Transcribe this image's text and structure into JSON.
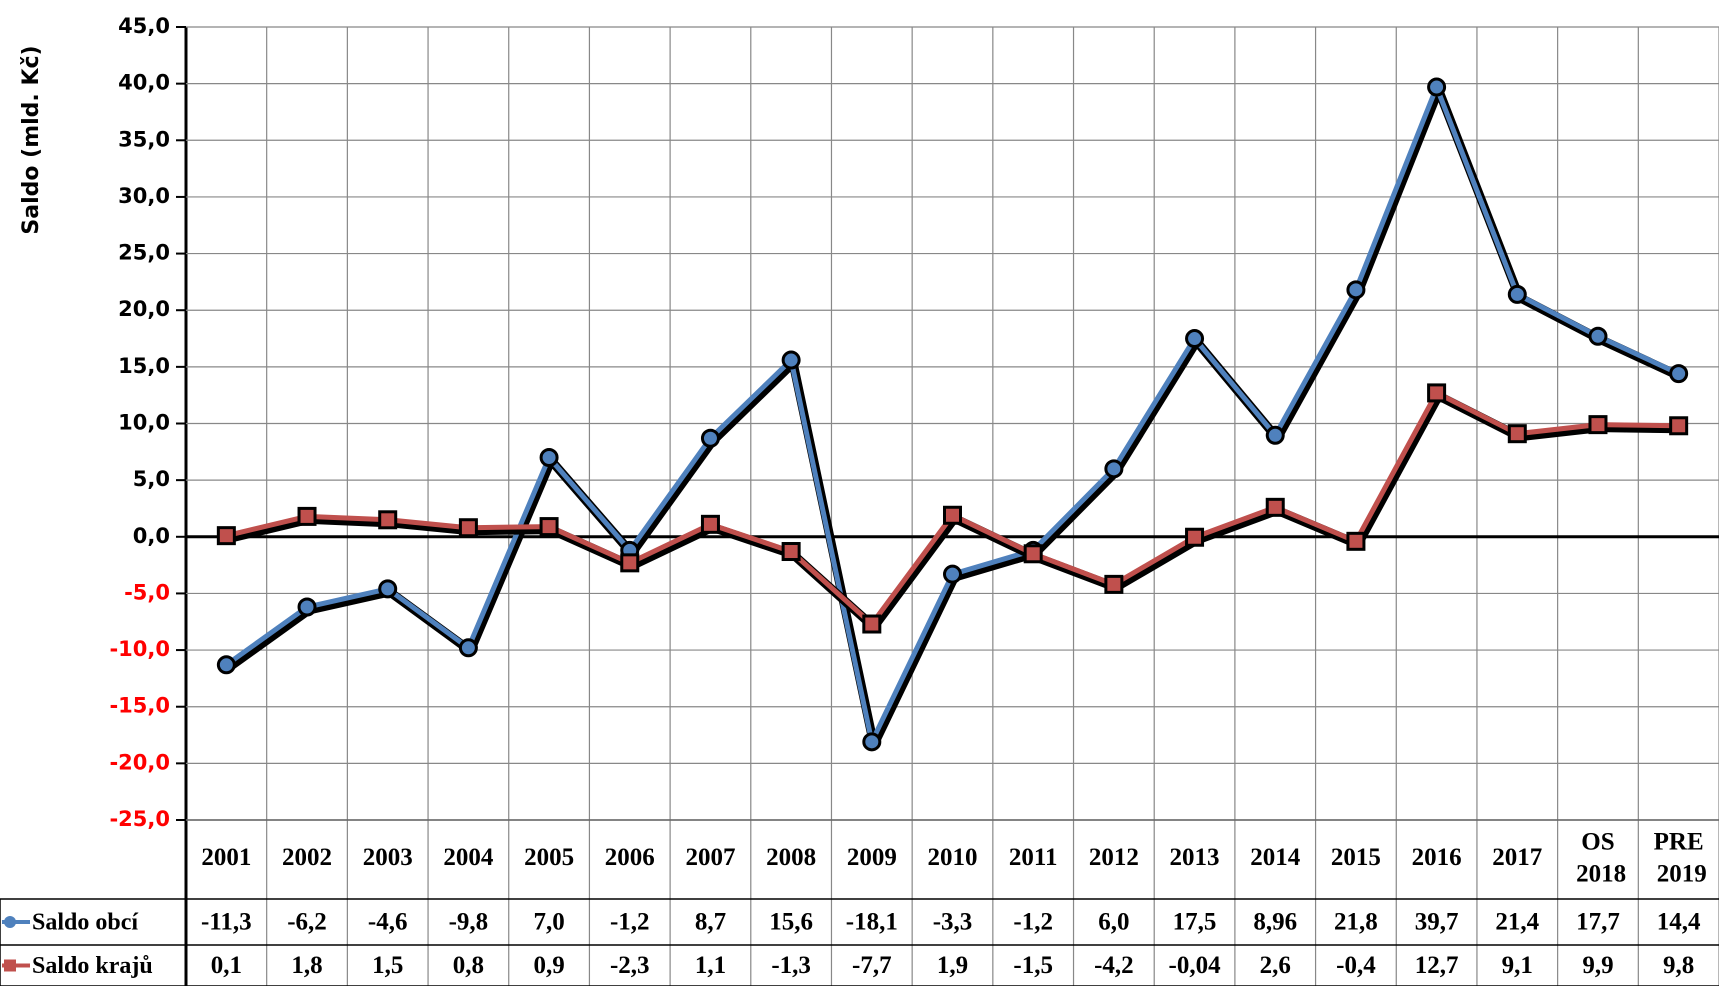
{
  "chart_data": {
    "type": "line",
    "ylabel": "Saldo (mld. Kč)",
    "categories": [
      "2001",
      "2002",
      "2003",
      "2004",
      "2005",
      "2006",
      "2007",
      "2008",
      "2009",
      "2010",
      "2011",
      "2012",
      "2013",
      "2014",
      "2015",
      "2016",
      "2017",
      "OS 2018",
      "PRE 2019"
    ],
    "series": [
      {
        "name": "Saldo obcí",
        "color": "#4f81bd",
        "values": [
          -11.3,
          -6.2,
          -4.6,
          -9.8,
          7.0,
          -1.2,
          8.7,
          15.6,
          -18.1,
          -3.3,
          -1.2,
          6.0,
          17.5,
          8.96,
          21.8,
          39.7,
          21.4,
          17.7,
          14.4
        ],
        "value_labels": [
          "-11,3",
          "-6,2",
          "-4,6",
          "-9,8",
          "7,0",
          "-1,2",
          "8,7",
          "15,6",
          "-18,1",
          "-3,3",
          "-1,2",
          "6,0",
          "17,5",
          "8,96",
          "21,8",
          "39,7",
          "21,4",
          "17,7",
          "14,4"
        ]
      },
      {
        "name": "Saldo krajů",
        "color": "#c0504d",
        "values": [
          0.1,
          1.8,
          1.5,
          0.8,
          0.9,
          -2.3,
          1.1,
          -1.3,
          -7.7,
          1.9,
          -1.5,
          -4.2,
          -0.04,
          2.6,
          -0.4,
          12.7,
          9.1,
          9.9,
          9.8
        ],
        "value_labels": [
          "0,1",
          "1,8",
          "1,5",
          "0,8",
          "0,9",
          "-2,3",
          "1,1",
          "-1,3",
          "-7,7",
          "1,9",
          "-1,5",
          "-4,2",
          "-0,04",
          "2,6",
          "-0,4",
          "12,7",
          "9,1",
          "9,9",
          "9,8"
        ]
      }
    ],
    "ylim": [
      -25,
      45
    ],
    "yticks": [
      {
        "value": -25,
        "label": "-25,0"
      },
      {
        "value": -20,
        "label": "-20,0"
      },
      {
        "value": -15,
        "label": "-15,0"
      },
      {
        "value": -10,
        "label": "-10,0"
      },
      {
        "value": -5,
        "label": "-5,0"
      },
      {
        "value": 0,
        "label": "0,0"
      },
      {
        "value": 5,
        "label": "5,0"
      },
      {
        "value": 10,
        "label": "10,0"
      },
      {
        "value": 15,
        "label": "15,0"
      },
      {
        "value": 20,
        "label": "20,0"
      },
      {
        "value": 25,
        "label": "25,0"
      },
      {
        "value": 30,
        "label": "30,0"
      },
      {
        "value": 35,
        "label": "35,0"
      },
      {
        "value": 40,
        "label": "40,0"
      },
      {
        "value": 45,
        "label": "45,0"
      }
    ],
    "grid": true
  }
}
